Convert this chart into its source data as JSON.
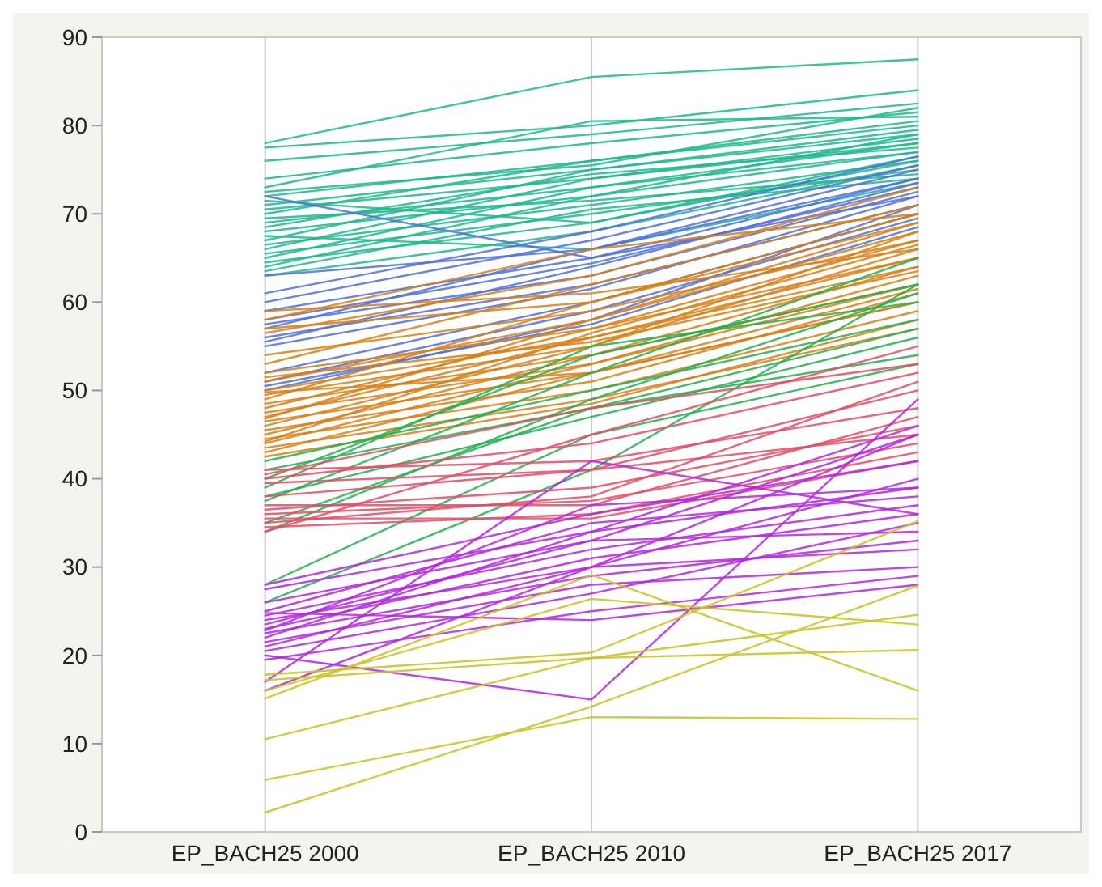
{
  "chart_data": {
    "type": "line",
    "categories": [
      "EP_BACH25 2000",
      "EP_BACH25 2010",
      "EP_BACH25 2017"
    ],
    "ylim": [
      0,
      90
    ],
    "yticks": [
      0,
      10,
      20,
      30,
      40,
      50,
      60,
      70,
      80,
      90
    ],
    "grid": "x",
    "series": [
      {
        "color": "#1db88e",
        "values": [
          78,
          85.5,
          87.5
        ]
      },
      {
        "color": "#1db88e",
        "values": [
          77.5,
          80,
          84
        ]
      },
      {
        "color": "#1db88e",
        "values": [
          76,
          79,
          82.5
        ]
      },
      {
        "color": "#1db88e",
        "values": [
          74,
          78,
          81.5
        ]
      },
      {
        "color": "#1db88e",
        "values": [
          73,
          80.5,
          81
        ]
      },
      {
        "color": "#1db88e",
        "values": [
          72.5,
          75.5,
          82
        ]
      },
      {
        "color": "#1db88e",
        "values": [
          72,
          76,
          80
        ]
      },
      {
        "color": "#1db88e",
        "values": [
          71,
          75,
          79
        ]
      },
      {
        "color": "#1db88e",
        "values": [
          70.5,
          74,
          78.5
        ]
      },
      {
        "color": "#1db88e",
        "values": [
          70,
          76,
          80.5
        ]
      },
      {
        "color": "#1db88e",
        "values": [
          69,
          73,
          78
        ]
      },
      {
        "color": "#1db88e",
        "values": [
          68,
          72,
          77
        ]
      },
      {
        "color": "#1db88e",
        "values": [
          67,
          75,
          79.5
        ]
      },
      {
        "color": "#1db88e",
        "values": [
          66.5,
          71,
          76
        ]
      },
      {
        "color": "#1db88e",
        "values": [
          66,
          74,
          78
        ]
      },
      {
        "color": "#1db88e",
        "values": [
          65.5,
          70,
          75
        ]
      },
      {
        "color": "#1db88e",
        "values": [
          65,
          73,
          77
        ]
      },
      {
        "color": "#1db88e",
        "values": [
          64.5,
          69,
          76.5
        ]
      },
      {
        "color": "#1db88e",
        "values": [
          64,
          72,
          79
        ]
      },
      {
        "color": "#1db88e",
        "values": [
          63.5,
          70.5,
          74
        ]
      },
      {
        "color": "#1db88e",
        "values": [
          63,
          68,
          75.5
        ]
      },
      {
        "color": "#1db88e",
        "values": [
          67.5,
          66,
          73.5
        ]
      },
      {
        "color": "#1db88e",
        "values": [
          68.5,
          74.5,
          77.5
        ]
      },
      {
        "color": "#1db88e",
        "values": [
          69.5,
          71.5,
          74.5
        ]
      },
      {
        "color": "#1db88e",
        "values": [
          71.5,
          69,
          76
        ]
      },
      {
        "color": "#4f6fe0",
        "values": [
          72,
          65,
          72
        ]
      },
      {
        "color": "#4f6fe0",
        "values": [
          63,
          66,
          74
        ]
      },
      {
        "color": "#4f6fe0",
        "values": [
          61,
          68,
          76.5
        ]
      },
      {
        "color": "#4f6fe0",
        "values": [
          60,
          67,
          75.5
        ]
      },
      {
        "color": "#4f6fe0",
        "values": [
          59,
          65,
          74
        ]
      },
      {
        "color": "#4f6fe0",
        "values": [
          58,
          64.4,
          73
        ]
      },
      {
        "color": "#4f6fe0",
        "values": [
          57.5,
          63,
          72.5
        ]
      },
      {
        "color": "#4f6fe0",
        "values": [
          57,
          66,
          75
        ]
      },
      {
        "color": "#4f6fe0",
        "values": [
          56,
          62,
          71
        ]
      },
      {
        "color": "#4f6fe0",
        "values": [
          55,
          61.5,
          72
        ]
      },
      {
        "color": "#4f6fe0",
        "values": [
          52,
          60,
          70
        ]
      },
      {
        "color": "#4f6fe0",
        "values": [
          51,
          59,
          69.5
        ]
      },
      {
        "color": "#4f6fe0",
        "values": [
          50.5,
          57.5,
          68.5
        ]
      },
      {
        "color": "#4f6fe0",
        "values": [
          50,
          58,
          71
        ]
      },
      {
        "color": "#4f6fe0",
        "values": [
          55.5,
          64,
          73.5
        ]
      },
      {
        "color": "#d97f14",
        "values": [
          59,
          61,
          66
        ]
      },
      {
        "color": "#d97f14",
        "values": [
          58,
          66,
          70
        ]
      },
      {
        "color": "#d97f14",
        "values": [
          57,
          60,
          69
        ]
      },
      {
        "color": "#d97f14",
        "values": [
          56.5,
          63,
          73
        ]
      },
      {
        "color": "#d97f14",
        "values": [
          54,
          59,
          67
        ]
      },
      {
        "color": "#d97f14",
        "values": [
          53,
          62,
          71
        ]
      },
      {
        "color": "#d97f14",
        "values": [
          52,
          57,
          65
        ]
      },
      {
        "color": "#d97f14",
        "values": [
          51,
          58,
          68
        ]
      },
      {
        "color": "#d97f14",
        "values": [
          50,
          56,
          64
        ]
      },
      {
        "color": "#d97f14",
        "values": [
          49.5,
          55,
          66
        ]
      },
      {
        "color": "#d97f14",
        "values": [
          49,
          60,
          70
        ]
      },
      {
        "color": "#d97f14",
        "values": [
          48.5,
          54,
          62
        ]
      },
      {
        "color": "#d97f14",
        "values": [
          48,
          57,
          67
        ]
      },
      {
        "color": "#d97f14",
        "values": [
          47.5,
          53,
          63
        ]
      },
      {
        "color": "#d97f14",
        "values": [
          47,
          56,
          65
        ]
      },
      {
        "color": "#d97f14",
        "values": [
          46.5,
          52,
          60
        ]
      },
      {
        "color": "#d97f14",
        "values": [
          46,
          55,
          68
        ]
      },
      {
        "color": "#d97f14",
        "values": [
          45.5,
          51,
          61
        ]
      },
      {
        "color": "#d97f14",
        "values": [
          45,
          54,
          64
        ]
      },
      {
        "color": "#d97f14",
        "values": [
          44.5,
          50,
          59
        ]
      },
      {
        "color": "#d97f14",
        "values": [
          44,
          53,
          62
        ]
      },
      {
        "color": "#d97f14",
        "values": [
          43.5,
          49,
          57
        ]
      },
      {
        "color": "#d97f14",
        "values": [
          43,
          52,
          60
        ]
      },
      {
        "color": "#d97f14",
        "values": [
          42.5,
          48.5,
          58
        ]
      },
      {
        "color": "#d97f14",
        "values": [
          46.8,
          58,
          69
        ]
      },
      {
        "color": "#d97f14",
        "values": [
          49.8,
          52,
          61.5
        ]
      },
      {
        "color": "#d97f14",
        "values": [
          51.5,
          55.5,
          63.5
        ]
      },
      {
        "color": "#d97f14",
        "values": [
          44.2,
          56.5,
          66.5
        ]
      },
      {
        "color": "#22b04f",
        "values": [
          42,
          50,
          58
        ]
      },
      {
        "color": "#22b04f",
        "values": [
          41,
          48,
          57
        ]
      },
      {
        "color": "#22b04f",
        "values": [
          40,
          54,
          62
        ]
      },
      {
        "color": "#22b04f",
        "values": [
          39,
          55,
          60
        ]
      },
      {
        "color": "#22b04f",
        "values": [
          38,
          47,
          56
        ]
      },
      {
        "color": "#22b04f",
        "values": [
          37.5,
          52,
          65
        ]
      },
      {
        "color": "#22b04f",
        "values": [
          35,
          48,
          54
        ]
      },
      {
        "color": "#22b04f",
        "values": [
          34,
          49,
          61
        ]
      },
      {
        "color": "#22b04f",
        "values": [
          28,
          45,
          53
        ]
      },
      {
        "color": "#22b04f",
        "values": [
          26,
          41,
          62
        ]
      },
      {
        "color": "#e64a64",
        "values": [
          41,
          42,
          48
        ]
      },
      {
        "color": "#e64a64",
        "values": [
          40,
          44,
          52
        ]
      },
      {
        "color": "#e64a64",
        "values": [
          39.5,
          41,
          50
        ]
      },
      {
        "color": "#e64a64",
        "values": [
          38,
          41,
          45
        ]
      },
      {
        "color": "#e64a64",
        "values": [
          37,
          37,
          47
        ]
      },
      {
        "color": "#e64a64",
        "values": [
          36.5,
          39,
          46
        ]
      },
      {
        "color": "#e64a64",
        "values": [
          36,
          37.5,
          44
        ]
      },
      {
        "color": "#e64a64",
        "values": [
          35.5,
          35.5,
          42
        ]
      },
      {
        "color": "#e64a64",
        "values": [
          35,
          38,
          51
        ]
      },
      {
        "color": "#e64a64",
        "values": [
          34.5,
          36,
          43
        ]
      },
      {
        "color": "#e64a64",
        "values": [
          34,
          45,
          55
        ]
      },
      {
        "color": "#e64a64",
        "values": [
          40.5,
          48,
          53
        ]
      },
      {
        "color": "#b524e3",
        "values": [
          28,
          36,
          42
        ]
      },
      {
        "color": "#b524e3",
        "values": [
          27.5,
          34,
          39
        ]
      },
      {
        "color": "#b524e3",
        "values": [
          26,
          33,
          45
        ]
      },
      {
        "color": "#b524e3",
        "values": [
          25,
          35,
          38
        ]
      },
      {
        "color": "#b524e3",
        "values": [
          24.5,
          32,
          37
        ]
      },
      {
        "color": "#b524e3",
        "values": [
          24,
          30,
          40
        ]
      },
      {
        "color": "#b524e3",
        "values": [
          23.5,
          33,
          34
        ]
      },
      {
        "color": "#b524e3",
        "values": [
          23,
          31,
          36
        ]
      },
      {
        "color": "#b524e3",
        "values": [
          22.5,
          29,
          33
        ]
      },
      {
        "color": "#b524e3",
        "values": [
          22,
          34,
          46
        ]
      },
      {
        "color": "#b524e3",
        "values": [
          21.5,
          28,
          30
        ]
      },
      {
        "color": "#b524e3",
        "values": [
          21,
          30,
          32
        ]
      },
      {
        "color": "#b524e3",
        "values": [
          20.5,
          27,
          35
        ]
      },
      {
        "color": "#b524e3",
        "values": [
          20,
          15,
          49
        ]
      },
      {
        "color": "#b524e3",
        "values": [
          19.5,
          25,
          29
        ]
      },
      {
        "color": "#b524e3",
        "values": [
          17,
          42,
          36
        ]
      },
      {
        "color": "#b524e3",
        "values": [
          16,
          30,
          45
        ]
      },
      {
        "color": "#b524e3",
        "values": [
          24.8,
          24,
          28
        ]
      },
      {
        "color": "#b524e3",
        "values": [
          22.8,
          37,
          39
        ]
      },
      {
        "color": "#c9c21f",
        "values": [
          2.2,
          14.2,
          27.9
        ]
      },
      {
        "color": "#c9c21f",
        "values": [
          5.9,
          13,
          12.8
        ]
      },
      {
        "color": "#c9c21f",
        "values": [
          10.5,
          19.7,
          24.6
        ]
      },
      {
        "color": "#c9c21f",
        "values": [
          15.1,
          29.1,
          16
        ]
      },
      {
        "color": "#c9c21f",
        "values": [
          16,
          26.4,
          23.5
        ]
      },
      {
        "color": "#c9c21f",
        "values": [
          17.8,
          20.3,
          35.2
        ]
      },
      {
        "color": "#c9c21f",
        "values": [
          17.2,
          19.7,
          20.6
        ]
      }
    ]
  }
}
